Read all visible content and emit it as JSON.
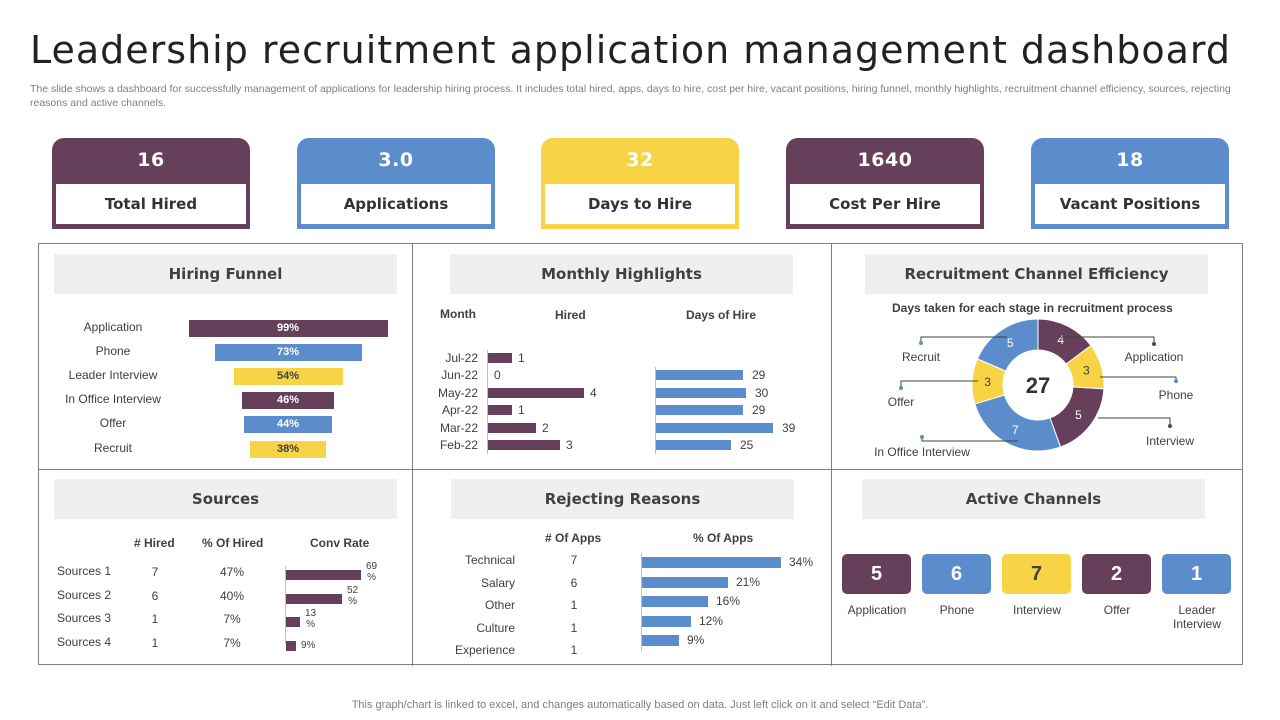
{
  "title": "Leadership recruitment application management dashboard",
  "subtitle": "The slide shows a dashboard for successfully management of applications for leadership hiring process. It includes total hired, apps, days to hire, cost per hire, vacant positions, hiring funnel, monthly highlights, recruitment channel efficiency,  sources, rejecting reasons and active channels.",
  "footer": "This graph/chart is linked to excel,  and changes automatically based on data. Just left click on it and select “Edit Data”.",
  "colors": {
    "purple": "#66405a",
    "blue": "#5b8dcc",
    "yellow": "#f7d345"
  },
  "kpis": [
    {
      "value": "16",
      "label": "Total Hired",
      "color": "#66405a"
    },
    {
      "value": "3.0",
      "label": "Applications",
      "color": "#5b8dcc"
    },
    {
      "value": "32",
      "label": "Days to Hire",
      "color": "#f7d345"
    },
    {
      "value": "1640",
      "label": "Cost Per Hire",
      "color": "#66405a"
    },
    {
      "value": "18",
      "label": "Vacant Positions",
      "color": "#5b8dcc"
    }
  ],
  "panels": {
    "funnel": "Hiring Funnel",
    "monthly": "Monthly Highlights",
    "efficiency": "Recruitment Channel Efficiency",
    "sources": "Sources",
    "rejecting": "Rejecting Reasons",
    "active": "Active Channels"
  },
  "chart_data": [
    {
      "type": "bar",
      "title": "Hiring Funnel",
      "categories": [
        "Application",
        "Phone",
        "Leader Interview",
        "In Office Interview",
        "Offer",
        "Recruit"
      ],
      "values": [
        99,
        73,
        54,
        46,
        44,
        38
      ],
      "value_labels": [
        "99%",
        "73%",
        "54%",
        "46%",
        "44%",
        "38%"
      ],
      "colors": [
        "#66405a",
        "#5b8dcc",
        "#f7d345",
        "#66405a",
        "#5b8dcc",
        "#f7d345"
      ]
    },
    {
      "type": "bar",
      "title": "Monthly Highlights",
      "headers": {
        "month": "Month",
        "hired": "Hired",
        "days": "Days of Hire"
      },
      "categories": [
        "Jul-22",
        "Jun-22",
        "May-22",
        "Apr-22",
        "Mar-22",
        "Feb-22"
      ],
      "series": [
        {
          "name": "Hired",
          "values": [
            1,
            0,
            4,
            1,
            2,
            3
          ]
        },
        {
          "name": "Days of Hire",
          "values": [
            null,
            29,
            30,
            29,
            39,
            25
          ]
        }
      ]
    },
    {
      "type": "pie",
      "title": "Recruitment Channel Efficiency",
      "subtitle": "Days taken for each stage in recruitment process",
      "center_value": "27",
      "slices": [
        {
          "label": "Application",
          "value": 4,
          "color": "#66405a"
        },
        {
          "label": "Phone",
          "value": 3,
          "color": "#f7d345"
        },
        {
          "label": "Interview",
          "value": 5,
          "color": "#66405a"
        },
        {
          "label": "In Office Interview",
          "value": 7,
          "color": "#5b8dcc"
        },
        {
          "label": "Offer",
          "value": 3,
          "color": "#f7d345"
        },
        {
          "label": "Recruit",
          "value": 5,
          "color": "#5b8dcc"
        }
      ]
    },
    {
      "type": "table",
      "title": "Sources",
      "headers": [
        "# Hired",
        "% Of Hired",
        "Conv Rate"
      ],
      "rows": [
        {
          "name": "Sources 1",
          "hired": "7",
          "pct": "47%",
          "conv": 69,
          "conv_label": [
            "69",
            "%"
          ]
        },
        {
          "name": "Sources 2",
          "hired": "6",
          "pct": "40%",
          "conv": 52,
          "conv_label": [
            "52",
            "%"
          ]
        },
        {
          "name": "Sources 3",
          "hired": "1",
          "pct": "7%",
          "conv": 13,
          "conv_label": [
            "13",
            "%"
          ]
        },
        {
          "name": "Sources 4",
          "hired": "1",
          "pct": "7%",
          "conv": 9,
          "conv_label": [
            "9%"
          ]
        }
      ]
    },
    {
      "type": "bar",
      "title": "Rejecting Reasons",
      "headers": [
        "# Of Apps",
        "% Of Apps"
      ],
      "categories": [
        "Technical",
        "Salary",
        "Other",
        "Culture",
        "Experience"
      ],
      "apps": [
        "7",
        "6",
        "1",
        "1",
        "1"
      ],
      "values": [
        34,
        21,
        16,
        12,
        9
      ],
      "value_labels": [
        "34%",
        "21%",
        "16%",
        "12%",
        "9%"
      ]
    }
  ],
  "active_channels": [
    {
      "value": "5",
      "label": "Application",
      "color": "#66405a"
    },
    {
      "value": "6",
      "label": "Phone",
      "color": "#5b8dcc"
    },
    {
      "value": "7",
      "label": "Interview",
      "color": "#f7d345"
    },
    {
      "value": "2",
      "label": "Offer",
      "color": "#66405a"
    },
    {
      "value": "1",
      "label": "Leader Interview",
      "color": "#5b8dcc"
    }
  ]
}
